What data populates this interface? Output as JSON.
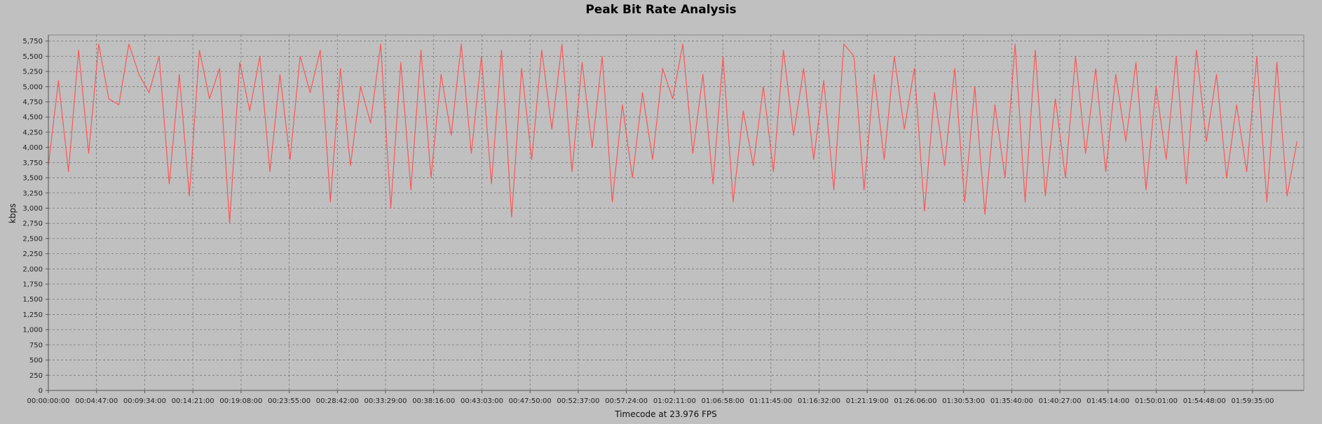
{
  "chart_data": {
    "type": "line",
    "title": "Peak Bit Rate Analysis",
    "xlabel": "Timecode at 23.976 FPS",
    "ylabel": "kbps",
    "ylim": [
      0,
      5850
    ],
    "yticks": [
      0,
      250,
      500,
      750,
      1000,
      1250,
      1500,
      1750,
      2000,
      2250,
      2500,
      2750,
      3000,
      3250,
      3500,
      3750,
      4000,
      4250,
      4500,
      4750,
      5000,
      5250,
      5500,
      5750
    ],
    "ytick_labels": [
      "0",
      "250",
      "500",
      "750",
      "1,000",
      "1,250",
      "1,500",
      "1,750",
      "2,000",
      "2,250",
      "2,500",
      "2,750",
      "3,000",
      "3,250",
      "3,500",
      "3,750",
      "4,000",
      "4,250",
      "4,500",
      "4,750",
      "5,000",
      "5,250",
      "5,500",
      "5,750"
    ],
    "xticks": [
      "00:00:00:00",
      "00:04:47:00",
      "00:09:34:00",
      "00:14:21:00",
      "00:19:08:00",
      "00:23:55:00",
      "00:28:42:00",
      "00:33:29:00",
      "00:38:16:00",
      "00:43:03:00",
      "00:47:50:00",
      "00:52:37:00",
      "00:57:24:00",
      "01:02:11:00",
      "01:06:58:00",
      "01:11:45:00",
      "01:16:32:00",
      "01:21:19:00",
      "01:26:06:00",
      "01:30:53:00",
      "01:35:40:00",
      "01:40:27:00",
      "01:45:14:00",
      "01:50:01:00",
      "01:54:48:00",
      "01:59:35:00"
    ],
    "xlim": [
      "00:00:00:00",
      "02:04:40:00"
    ],
    "grid": true,
    "series": [
      {
        "color": "#ff5555",
        "x": [
          "00:00:00:00",
          "00:01:00:00",
          "00:02:00:00",
          "00:03:00:00",
          "00:04:00:00",
          "00:05:00:00",
          "00:06:00:00",
          "00:07:00:00",
          "00:08:00:00",
          "00:09:00:00",
          "00:10:00:00",
          "00:11:00:00",
          "00:12:00:00",
          "00:13:00:00",
          "00:14:00:00",
          "00:15:00:00",
          "00:16:00:00",
          "00:17:00:00",
          "00:18:00:00",
          "00:19:00:00",
          "00:20:00:00",
          "00:21:00:00",
          "00:22:00:00",
          "00:23:00:00",
          "00:24:00:00",
          "00:25:00:00",
          "00:26:00:00",
          "00:27:00:00",
          "00:28:00:00",
          "00:29:00:00",
          "00:30:00:00",
          "00:31:00:00",
          "00:32:00:00",
          "00:33:00:00",
          "00:34:00:00",
          "00:35:00:00",
          "00:36:00:00",
          "00:37:00:00",
          "00:38:00:00",
          "00:39:00:00",
          "00:40:00:00",
          "00:41:00:00",
          "00:42:00:00",
          "00:43:00:00",
          "00:44:00:00",
          "00:45:00:00",
          "00:46:00:00",
          "00:47:00:00",
          "00:48:00:00",
          "00:49:00:00",
          "00:50:00:00",
          "00:51:00:00",
          "00:52:00:00",
          "00:53:00:00",
          "00:54:00:00",
          "00:55:00:00",
          "00:56:00:00",
          "00:57:00:00",
          "00:58:00:00",
          "00:59:00:00",
          "01:00:00:00",
          "01:01:00:00",
          "01:02:00:00",
          "01:03:00:00",
          "01:04:00:00",
          "01:05:00:00",
          "01:06:00:00",
          "01:07:00:00",
          "01:08:00:00",
          "01:09:00:00",
          "01:10:00:00",
          "01:11:00:00",
          "01:12:00:00",
          "01:13:00:00",
          "01:14:00:00",
          "01:15:00:00",
          "01:16:00:00",
          "01:17:00:00",
          "01:18:00:00",
          "01:19:00:00",
          "01:20:00:00",
          "01:21:00:00",
          "01:22:00:00",
          "01:23:00:00",
          "01:24:00:00",
          "01:25:00:00",
          "01:26:00:00",
          "01:27:00:00",
          "01:28:00:00",
          "01:29:00:00",
          "01:30:00:00",
          "01:31:00:00",
          "01:32:00:00",
          "01:33:00:00",
          "01:34:00:00",
          "01:35:00:00",
          "01:36:00:00",
          "01:37:00:00",
          "01:38:00:00",
          "01:39:00:00",
          "01:40:00:00",
          "01:41:00:00",
          "01:42:00:00",
          "01:43:00:00",
          "01:44:00:00",
          "01:45:00:00",
          "01:46:00:00",
          "01:47:00:00",
          "01:48:00:00",
          "01:49:00:00",
          "01:50:00:00",
          "01:51:00:00",
          "01:52:00:00",
          "01:53:00:00",
          "01:54:00:00",
          "01:55:00:00",
          "01:56:00:00",
          "01:57:00:00",
          "01:58:00:00",
          "01:59:00:00",
          "02:00:00:00",
          "02:01:00:00",
          "02:02:00:00",
          "02:03:00:00",
          "02:04:00:00"
        ],
        "values": [
          3700,
          5100,
          3600,
          5600,
          3900,
          5700,
          4800,
          4700,
          5700,
          5200,
          4900,
          5500,
          3400,
          5200,
          3200,
          5600,
          4800,
          5300,
          2750,
          5400,
          4600,
          5500,
          3600,
          5200,
          3800,
          5500,
          4900,
          5600,
          3100,
          5300,
          3700,
          5000,
          4400,
          5700,
          3000,
          5400,
          3300,
          5600,
          3500,
          5200,
          4200,
          5700,
          3900,
          5500,
          3400,
          5600,
          2850,
          5300,
          3800,
          5600,
          4300,
          5700,
          3600,
          5400,
          4000,
          5500,
          3100,
          4700,
          3500,
          4900,
          3800,
          5300,
          4800,
          5700,
          3900,
          5200,
          3400,
          5500,
          3100,
          4600,
          3700,
          5000,
          3600,
          5600,
          4200,
          5300,
          3800,
          5100,
          3300,
          5700,
          5500,
          3300,
          5200,
          3800,
          5500,
          4300,
          5300,
          2950,
          4900,
          3700,
          5300,
          3100,
          5000,
          2900,
          4700,
          3500,
          5700,
          3100,
          5600,
          3200,
          4800,
          3500,
          5500,
          3900,
          5300,
          3600,
          5200,
          4100,
          5400,
          3300,
          5000,
          3800,
          5500,
          3400,
          5600,
          4100,
          5200,
          3500,
          4700,
          3600,
          5500,
          3100,
          5400,
          3200,
          4100
        ]
      }
    ]
  }
}
